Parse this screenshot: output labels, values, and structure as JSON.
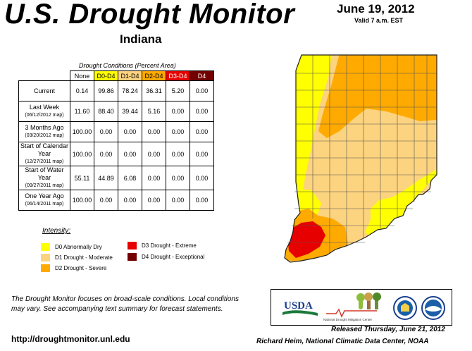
{
  "header": {
    "title": "U.S. Drought Monitor",
    "subtitle": "Indiana",
    "date": "June 19, 2012",
    "valid": "Valid 7 a.m. EST"
  },
  "table": {
    "caption": "Drought Conditions (Percent Area)",
    "columns": [
      {
        "label": "None",
        "color": "#ffffff"
      },
      {
        "label": "D0-D4",
        "color": "#ffff00"
      },
      {
        "label": "D1-D4",
        "color": "#fcd37f"
      },
      {
        "label": "D2-D4",
        "color": "#ffaa00"
      },
      {
        "label": "D3-D4",
        "color": "#e60000"
      },
      {
        "label": "D4",
        "color": "#730000"
      }
    ],
    "rows": [
      {
        "label": "Current",
        "sub": "",
        "values": [
          "0.14",
          "99.86",
          "78.24",
          "36.31",
          "5.20",
          "0.00"
        ]
      },
      {
        "label": "Last Week",
        "sub": "(06/12/2012 map)",
        "values": [
          "11.60",
          "88.40",
          "39.44",
          "5.16",
          "0.00",
          "0.00"
        ]
      },
      {
        "label": "3 Months Ago",
        "sub": "(03/20/2012 map)",
        "values": [
          "100.00",
          "0.00",
          "0.00",
          "0.00",
          "0.00",
          "0.00"
        ]
      },
      {
        "label": "Start of Calendar Year",
        "sub": "(12/27/2011 map)",
        "values": [
          "100.00",
          "0.00",
          "0.00",
          "0.00",
          "0.00",
          "0.00"
        ]
      },
      {
        "label": "Start of Water Year",
        "sub": "(09/27/2011 map)",
        "values": [
          "55.11",
          "44.89",
          "6.08",
          "0.00",
          "0.00",
          "0.00"
        ]
      },
      {
        "label": "One Year Ago",
        "sub": "(06/14/2011 map)",
        "values": [
          "100.00",
          "0.00",
          "0.00",
          "0.00",
          "0.00",
          "0.00"
        ]
      }
    ]
  },
  "legend": {
    "title": "Intensity:",
    "items": [
      {
        "label": "D0 Abnormally Dry",
        "color": "#ffff00"
      },
      {
        "label": "D1 Drought - Moderate",
        "color": "#fcd37f"
      },
      {
        "label": "D2 Drought - Severe",
        "color": "#ffaa00"
      },
      {
        "label": "D3 Drought - Extreme",
        "color": "#e60000"
      },
      {
        "label": "D4 Drought - Exceptional",
        "color": "#730000"
      }
    ]
  },
  "note": "The Drought Monitor focuses on broad-scale conditions. Local conditions may vary. See accompanying text summary for forecast statements.",
  "url": "http://droughtmonitor.unl.edu",
  "logos": {
    "usda": "USDA",
    "ndmc": "National Drought Mitigation Center"
  },
  "footer": {
    "released": "Released Thursday, June 21, 2012",
    "author": "Richard Heim, National Climatic Data Center, NOAA"
  },
  "map": {
    "name": "Indiana",
    "colors": {
      "d0": "#ffff00",
      "d1": "#fcd37f",
      "d2": "#ffaa00",
      "d3": "#e60000",
      "border": "#555555"
    }
  }
}
